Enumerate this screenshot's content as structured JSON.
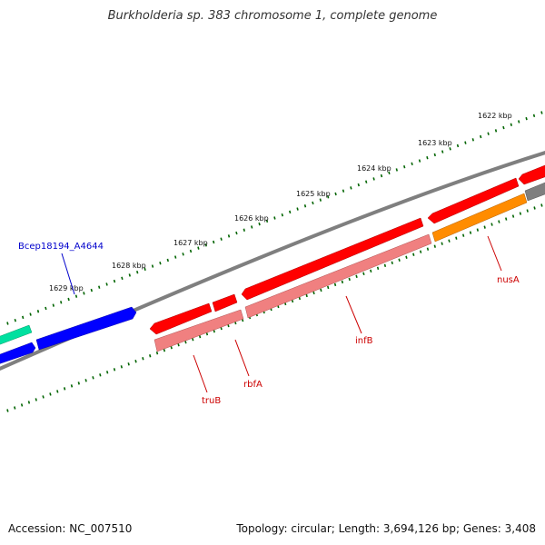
{
  "title": "Burkholderia sp. 383 chromosome 1, complete genome",
  "footer": {
    "accession": "Accession: NC_007510",
    "summary": "Topology: circular; Length: 3,694,126 bp; Genes: 3,408"
  },
  "scale_labels": [
    "1622 kbp",
    "1623 kbp",
    "1624 kbp",
    "1625 kbp",
    "1626 kbp",
    "1627 kbp",
    "1628 kbp",
    "1629 kbp"
  ],
  "gene_labels": {
    "bcep": "Bcep18194_A4644",
    "nusA": "nusA",
    "infB": "infB",
    "rbfA": "rbfA",
    "truB": "truB"
  },
  "colors": {
    "backbone": "#7f7f7f",
    "cds": "#ff0000",
    "gene": "#f08080",
    "blue": "#0000ff",
    "teal": "#00e0a0",
    "orange": "#ff8c00",
    "ticks": "#006400",
    "gene_label": "#cc0000",
    "blue_label": "#0000cc"
  }
}
